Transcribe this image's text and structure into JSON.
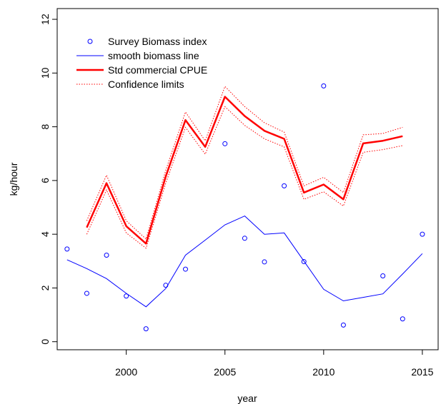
{
  "chart_data": {
    "type": "line",
    "xlabel": "year",
    "ylabel": "kg/hour",
    "xlim": [
      1996.5,
      2015.8
    ],
    "ylim": [
      -0.3,
      12.4
    ],
    "x_ticks": [
      2000,
      2005,
      2010,
      2015
    ],
    "y_ticks": [
      0,
      2,
      4,
      6,
      8,
      10,
      12
    ],
    "grid": false,
    "legend_position": "top-left",
    "series": [
      {
        "name": "Survey Biomass index",
        "kind": "points",
        "color": "#0000ff",
        "x": [
          1997,
          1998,
          1999,
          2000,
          2001,
          2002,
          2003,
          2005,
          2006,
          2007,
          2008,
          2009,
          2010,
          2011,
          2013,
          2014,
          2015
        ],
        "y": [
          3.45,
          1.8,
          3.22,
          1.7,
          0.48,
          2.1,
          2.7,
          7.37,
          3.85,
          2.97,
          5.8,
          2.98,
          9.52,
          0.62,
          2.45,
          0.85,
          4.0
        ]
      },
      {
        "name": "smooth biomass line",
        "kind": "line",
        "color": "#0000ff",
        "x": [
          1997,
          1998,
          1999,
          2000,
          2001,
          2002,
          2003,
          2004,
          2005,
          2006,
          2007,
          2008,
          2009,
          2010,
          2011,
          2012,
          2013,
          2014,
          2015
        ],
        "y": [
          3.05,
          2.72,
          2.35,
          1.8,
          1.3,
          1.98,
          3.22,
          3.78,
          4.35,
          4.68,
          4.0,
          4.05,
          3.0,
          1.95,
          1.52,
          1.65,
          1.78,
          2.52,
          3.28
        ]
      },
      {
        "name": "Std commercial CPUE",
        "kind": "line",
        "color": "#ff0000",
        "x": [
          1998,
          1999,
          2000,
          2001,
          2002,
          2003,
          2004,
          2005,
          2006,
          2007,
          2008,
          2009,
          2010,
          2011,
          2012,
          2013,
          2014
        ],
        "y": [
          4.25,
          5.9,
          4.3,
          3.65,
          6.15,
          8.25,
          7.25,
          9.12,
          8.4,
          7.85,
          7.55,
          5.55,
          5.85,
          5.3,
          7.38,
          7.48,
          7.65
        ]
      },
      {
        "name": "Confidence limits",
        "kind": "dotted-line",
        "color": "#ff0000",
        "x": [
          1998,
          1999,
          2000,
          2001,
          2002,
          2003,
          2004,
          2005,
          2006,
          2007,
          2008,
          2009,
          2010,
          2011,
          2012,
          2013,
          2014
        ],
        "upper": [
          4.5,
          6.2,
          4.5,
          3.82,
          6.38,
          8.55,
          7.48,
          9.5,
          8.75,
          8.15,
          7.8,
          5.8,
          6.12,
          5.55,
          7.7,
          7.75,
          7.98
        ],
        "lower": [
          4.0,
          5.65,
          4.05,
          3.48,
          5.9,
          7.98,
          6.98,
          8.75,
          8.05,
          7.55,
          7.25,
          5.3,
          5.58,
          5.05,
          7.05,
          7.15,
          7.3
        ]
      }
    ]
  }
}
